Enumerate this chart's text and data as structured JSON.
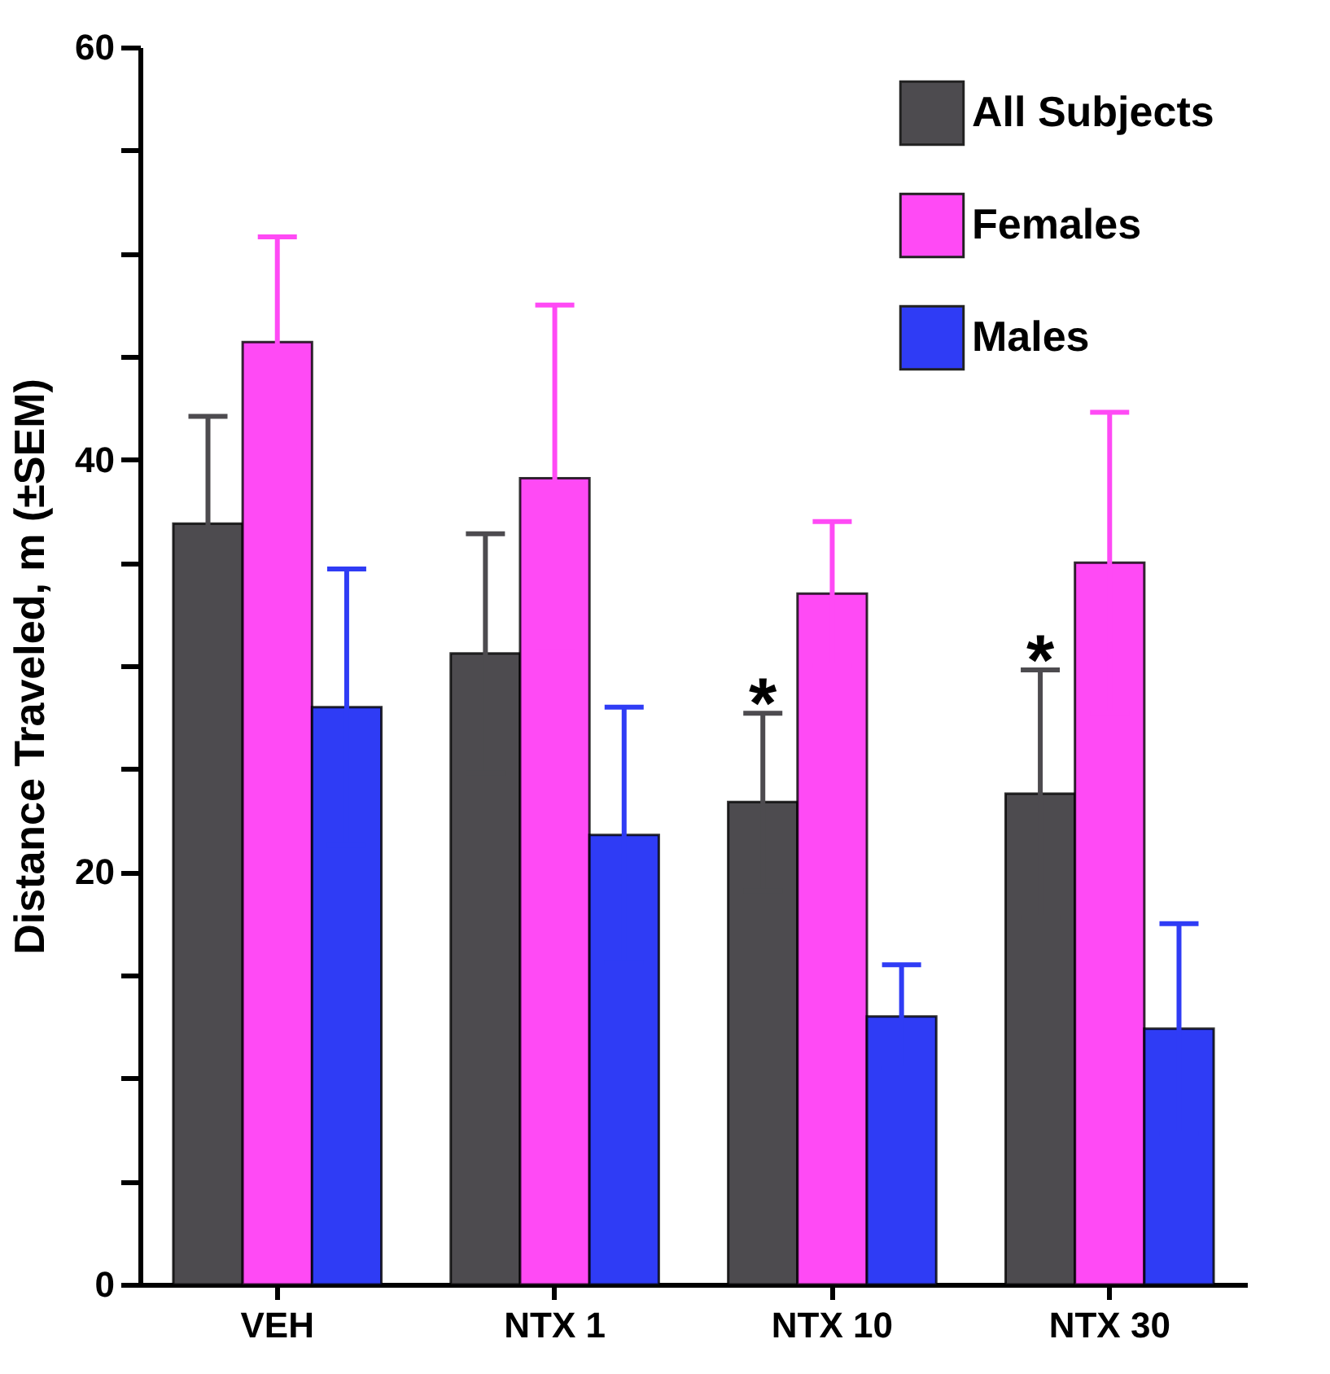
{
  "chart_data": {
    "type": "bar",
    "ylabel": "Distance Traveled, m (±SEM)",
    "categories": [
      "VEH",
      "NTX 1",
      "NTX 10",
      "NTX 30"
    ],
    "series": [
      {
        "name": "All Subjects",
        "color": "#4d4b4f",
        "values": [
          36.9,
          30.6,
          23.4,
          23.8
        ],
        "errors": [
          5.2,
          5.8,
          4.3,
          6.0
        ],
        "value_labels": [
          null,
          null,
          "*",
          "*"
        ]
      },
      {
        "name": "Females",
        "color": "#ff4af5",
        "values": [
          45.7,
          39.1,
          33.5,
          35.0
        ],
        "errors": [
          5.1,
          8.4,
          3.5,
          7.3
        ]
      },
      {
        "name": "Males",
        "color": "#2f3cf5",
        "values": [
          28.0,
          21.8,
          13.0,
          12.4
        ],
        "errors": [
          6.7,
          6.2,
          2.5,
          5.1
        ]
      }
    ],
    "ylim": [
      0,
      60
    ],
    "yticks": [
      0,
      {
        "value": 5,
        "label": null
      },
      {
        "value": 10,
        "label": null
      },
      {
        "value": 15,
        "label": null
      },
      20,
      {
        "value": 25,
        "label": null
      },
      {
        "value": 30,
        "label": null
      },
      {
        "value": 35,
        "label": null
      },
      40,
      {
        "value": 45,
        "label": null
      },
      {
        "value": 50,
        "label": null
      },
      {
        "value": 55,
        "label": null
      },
      60
    ],
    "legend": "top right",
    "grid": false
  }
}
